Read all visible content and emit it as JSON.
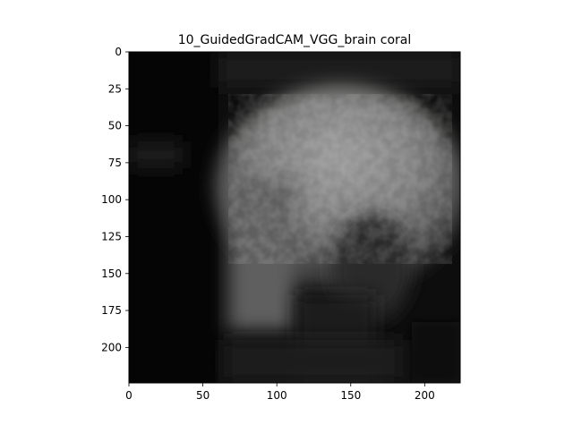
{
  "chart_data": {
    "type": "heatmap",
    "title": "10_GuidedGradCAM_VGG_brain coral",
    "xlabel": "",
    "ylabel": "",
    "xlim": [
      0,
      224
    ],
    "ylim": [
      224,
      0
    ],
    "x_ticks": [
      0,
      50,
      100,
      150,
      200
    ],
    "y_ticks": [
      0,
      25,
      50,
      75,
      100,
      125,
      150,
      175,
      200
    ],
    "x_tick_labels": [
      "0",
      "50",
      "100",
      "150",
      "200"
    ],
    "y_tick_labels": [
      "0",
      "25",
      "50",
      "75",
      "100",
      "125",
      "150",
      "175",
      "200"
    ],
    "grid": false,
    "colormap": "grayscale",
    "image_width": 224,
    "image_height": 224
  }
}
